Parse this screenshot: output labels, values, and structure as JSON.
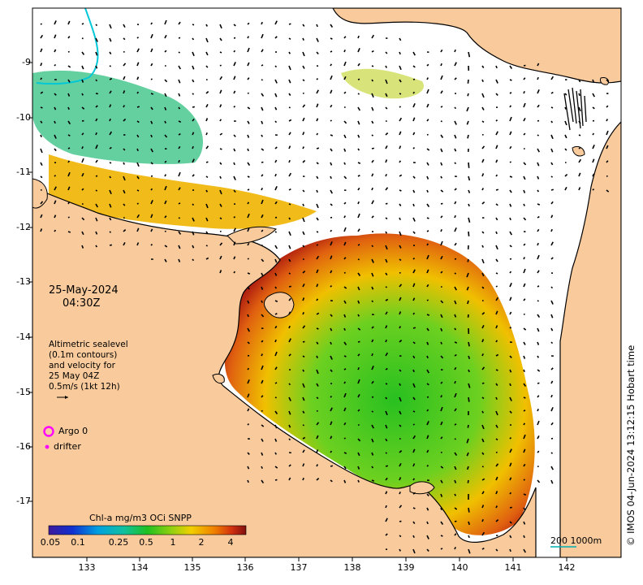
{
  "map": {
    "date": "25-May-2024",
    "time": "04:30Z",
    "sealevel_note": [
      "Altimetric sealevel",
      "(0.1m contours)",
      "and velocity for",
      "25 May 04Z",
      "0.5m/s (1kt 12h)"
    ],
    "legend": {
      "argo": "Argo 0",
      "drifter": "drifter"
    },
    "x_ticks": [
      "133",
      "134",
      "135",
      "136",
      "137",
      "138",
      "139",
      "140",
      "141",
      "142"
    ],
    "y_ticks": [
      "-9",
      "-10",
      "-11",
      "-12",
      "-13",
      "-14",
      "-15",
      "-16",
      "-17"
    ],
    "colorbar": {
      "title": "Chl-a mg/m3 OCi SNPP",
      "ticks": [
        "0.05",
        "0.1",
        "0.25",
        "0.5",
        "1",
        "2",
        "4"
      ]
    },
    "scale_bar": {
      "km": "200",
      "depth": "1000m"
    },
    "credit": "© IMOS 04-Jun-2024 13:12:15 Hobart time",
    "colors": {
      "land": "#f9cb9c",
      "coast": "#000000",
      "river": "#00c8d8",
      "argo": "#ff00ff",
      "drifter": "#ff00ff"
    }
  }
}
